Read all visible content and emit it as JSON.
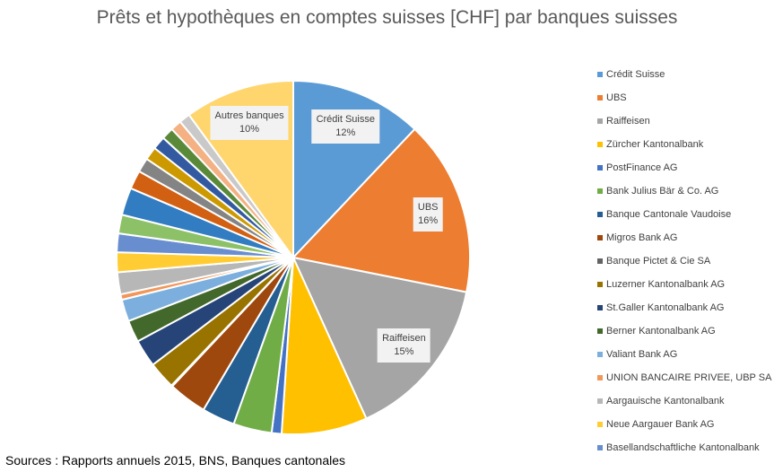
{
  "chart_data": {
    "type": "pie",
    "title": "Prêts et hypothèques en comptes suisses [CHF] par banques suisses",
    "legend_position": "right",
    "slices": [
      {
        "name": "Crédit Suisse",
        "value": 12,
        "color": "#5B9BD5",
        "label": "12%",
        "show_label": true
      },
      {
        "name": "UBS",
        "value": 16,
        "color": "#ED7D31",
        "label": "16%",
        "show_label": true
      },
      {
        "name": "Raiffeisen",
        "value": 15,
        "color": "#A5A5A5",
        "label": "15%",
        "show_label": true
      },
      {
        "name": "Zürcher Kantonalbank",
        "value": 7.8,
        "color": "#FFC000"
      },
      {
        "name": "PostFinance AG",
        "value": 0.9,
        "color": "#4472C4"
      },
      {
        "name": "Bank Julius Bär & Co. AG",
        "value": 3.5,
        "color": "#70AD47"
      },
      {
        "name": "Banque Cantonale Vaudoise",
        "value": 3,
        "color": "#255E91"
      },
      {
        "name": "Migros Bank AG",
        "value": 3.5,
        "color": "#9E480E"
      },
      {
        "name": "Banque Pictet & Cie SA",
        "value": 0.1,
        "color": "#636363"
      },
      {
        "name": "Luzerner Kantonalbank AG",
        "value": 2.5,
        "color": "#997300"
      },
      {
        "name": "St.Galler Kantonalbank AG",
        "value": 2.5,
        "color": "#264478"
      },
      {
        "name": "Berner Kantonalbank AG",
        "value": 2,
        "color": "#43682B"
      },
      {
        "name": "Valiant Bank AG",
        "value": 2,
        "color": "#7CAFDD"
      },
      {
        "name": "UNION BANCAIRE PRIVEE, UBP SA",
        "value": 0.5,
        "color": "#F1975A"
      },
      {
        "name": "Aargauische Kantonalbank",
        "value": 2,
        "color": "#B7B7B7"
      },
      {
        "name": "Neue Aargauer Bank AG",
        "value": 1.8,
        "color": "#FFCD33"
      },
      {
        "name": "Basellandschaftliche Kantonalbank",
        "value": 1.7,
        "color": "#698ED0"
      },
      {
        "value": 1.7,
        "color": "#8CC168"
      },
      {
        "value": 2.5,
        "color": "#327DC2"
      },
      {
        "value": 1.7,
        "color": "#D26012"
      },
      {
        "value": 1.3,
        "color": "#848484"
      },
      {
        "value": 1.2,
        "color": "#CC9A00"
      },
      {
        "value": 1.2,
        "color": "#335AA1"
      },
      {
        "value": 1.1,
        "color": "#5A8A39"
      },
      {
        "value": 1.0,
        "color": "#F4B183"
      },
      {
        "value": 1.0,
        "color": "#C9C9C9"
      },
      {
        "name": "Autres banques",
        "value": 10,
        "color": "#FFD56E",
        "label": "10%",
        "show_label": true
      }
    ],
    "legend_visible": [
      "Crédit Suisse",
      "UBS",
      "Raiffeisen",
      "Zürcher Kantonalbank",
      "PostFinance AG",
      "Bank Julius Bär & Co. AG",
      "Banque Cantonale Vaudoise",
      "Migros Bank AG",
      "Banque Pictet & Cie SA",
      "Luzerner Kantonalbank AG",
      "St.Galler Kantonalbank AG",
      "Berner Kantonalbank AG",
      "Valiant Bank AG",
      "UNION BANCAIRE PRIVEE, UBP SA",
      "Aargauische Kantonalbank",
      "Neue Aargauer Bank AG",
      "Basellandschaftliche Kantonalbank"
    ]
  },
  "source": "Sources : Rapports annuels 2015, BNS, Banques cantonales"
}
